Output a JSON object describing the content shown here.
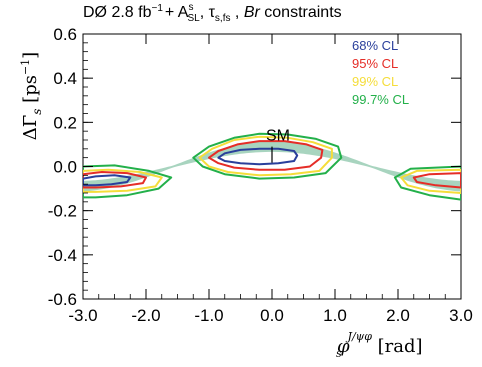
{
  "chart_data": {
    "type": "contour",
    "title_parts": {
      "experiment": "DØ",
      "lumi": "2.8 fb",
      "lumi_exp": "−1",
      "plus": "+ A",
      "asl_sup": "s",
      "asl_sub": "SL",
      "tau": ", τ",
      "tau_sub": "s,fs",
      "br_sep": " , ",
      "br": "Br",
      "constraints": " constraints"
    },
    "ylabel": {
      "main": "ΔΓ",
      "sub": "s",
      "unit": " [ps",
      "unit_exp": "−1",
      "close": "]"
    },
    "xlabel": {
      "main": "φ",
      "sup": "J/ψφ",
      "sub": "s",
      "unit": "[rad]"
    },
    "xlim": [
      -3.0,
      3.0
    ],
    "ylim": [
      -0.6,
      0.6
    ],
    "x_ticks": [
      "-3.0",
      "-2.0",
      "-1.0",
      "0.0",
      "1.0",
      "2.0",
      "3.0"
    ],
    "y_ticks": [
      "-0.6",
      "-0.4",
      "-0.2",
      "0.0",
      "0.2",
      "0.4",
      "0.6"
    ],
    "annotation": "SM",
    "sm_point": [
      0.0,
      0.09
    ],
    "sm_band_color": "#9fcfb8",
    "legend_placement": "top-right",
    "series": [
      {
        "name": "68% CL",
        "color": "#2a3f9b",
        "contours": [
          [
            [
              -0.85,
              0.04
            ],
            [
              -0.75,
              0.06
            ],
            [
              -0.5,
              0.075
            ],
            [
              -0.2,
              0.08
            ],
            [
              0.1,
              0.08
            ],
            [
              0.35,
              0.07
            ],
            [
              0.4,
              0.05
            ],
            [
              0.35,
              0.025
            ],
            [
              0.1,
              0.015
            ],
            [
              -0.2,
              0.01
            ],
            [
              -0.5,
              0.015
            ],
            [
              -0.75,
              0.025
            ]
          ],
          [
            [
              -3.0,
              -0.055
            ],
            [
              -2.8,
              -0.045
            ],
            [
              -2.5,
              -0.04
            ],
            [
              -2.25,
              -0.05
            ],
            [
              -2.3,
              -0.07
            ],
            [
              -2.55,
              -0.08
            ],
            [
              -2.8,
              -0.085
            ],
            [
              -3.0,
              -0.085
            ]
          ]
        ]
      },
      {
        "name": "95% CL",
        "color": "#e52d27",
        "contours": [
          [
            [
              -1.0,
              0.04
            ],
            [
              -0.85,
              0.07
            ],
            [
              -0.55,
              0.1
            ],
            [
              -0.2,
              0.115
            ],
            [
              0.2,
              0.115
            ],
            [
              0.55,
              0.1
            ],
            [
              0.8,
              0.075
            ],
            [
              0.78,
              0.04
            ],
            [
              0.6,
              0.0
            ],
            [
              0.2,
              -0.015
            ],
            [
              -0.2,
              -0.015
            ],
            [
              -0.6,
              -0.005
            ],
            [
              -0.85,
              0.015
            ]
          ],
          [
            [
              -3.0,
              -0.035
            ],
            [
              -2.7,
              -0.025
            ],
            [
              -2.3,
              -0.03
            ],
            [
              -2.0,
              -0.05
            ],
            [
              -2.05,
              -0.075
            ],
            [
              -2.4,
              -0.09
            ],
            [
              -2.8,
              -0.095
            ],
            [
              -3.0,
              -0.095
            ]
          ],
          [
            [
              3.0,
              -0.095
            ],
            [
              2.6,
              -0.085
            ],
            [
              2.3,
              -0.07
            ],
            [
              2.25,
              -0.05
            ],
            [
              2.5,
              -0.035
            ],
            [
              3.0,
              -0.03
            ]
          ]
        ]
      },
      {
        "name": "99% CL",
        "color": "#f5dd3a",
        "contours": [
          [
            [
              -1.15,
              0.04
            ],
            [
              -0.95,
              0.08
            ],
            [
              -0.6,
              0.12
            ],
            [
              -0.2,
              0.135
            ],
            [
              0.25,
              0.13
            ],
            [
              0.65,
              0.11
            ],
            [
              0.95,
              0.08
            ],
            [
              0.95,
              0.04
            ],
            [
              0.75,
              -0.02
            ],
            [
              0.3,
              -0.035
            ],
            [
              -0.2,
              -0.04
            ],
            [
              -0.7,
              -0.025
            ],
            [
              -1.0,
              0.0
            ]
          ],
          [
            [
              -3.0,
              -0.02
            ],
            [
              -2.6,
              -0.015
            ],
            [
              -2.1,
              -0.025
            ],
            [
              -1.75,
              -0.05
            ],
            [
              -1.85,
              -0.09
            ],
            [
              -2.3,
              -0.11
            ],
            [
              -2.8,
              -0.115
            ],
            [
              -3.0,
              -0.115
            ]
          ],
          [
            [
              3.0,
              -0.12
            ],
            [
              2.5,
              -0.11
            ],
            [
              2.15,
              -0.085
            ],
            [
              2.05,
              -0.05
            ],
            [
              2.3,
              -0.02
            ],
            [
              3.0,
              -0.015
            ]
          ]
        ]
      },
      {
        "name": "99.7% CL",
        "color": "#23b04a",
        "contours": [
          [
            [
              -1.25,
              0.04
            ],
            [
              -1.0,
              0.09
            ],
            [
              -0.6,
              0.13
            ],
            [
              -0.2,
              0.148
            ],
            [
              0.25,
              0.145
            ],
            [
              0.7,
              0.125
            ],
            [
              1.05,
              0.09
            ],
            [
              1.1,
              0.04
            ],
            [
              0.85,
              -0.03
            ],
            [
              0.35,
              -0.05
            ],
            [
              -0.2,
              -0.055
            ],
            [
              -0.75,
              -0.035
            ],
            [
              -1.1,
              0.0
            ]
          ],
          [
            [
              -3.0,
              0.0
            ],
            [
              -2.5,
              0.005
            ],
            [
              -1.95,
              -0.02
            ],
            [
              -1.6,
              -0.05
            ],
            [
              -1.8,
              -0.1
            ],
            [
              -2.3,
              -0.13
            ],
            [
              -2.8,
              -0.14
            ],
            [
              -3.0,
              -0.14
            ]
          ],
          [
            [
              3.0,
              -0.15
            ],
            [
              2.5,
              -0.13
            ],
            [
              2.05,
              -0.095
            ],
            [
              1.95,
              -0.05
            ],
            [
              2.2,
              -0.01
            ],
            [
              3.0,
              0.0
            ]
          ]
        ]
      }
    ]
  }
}
